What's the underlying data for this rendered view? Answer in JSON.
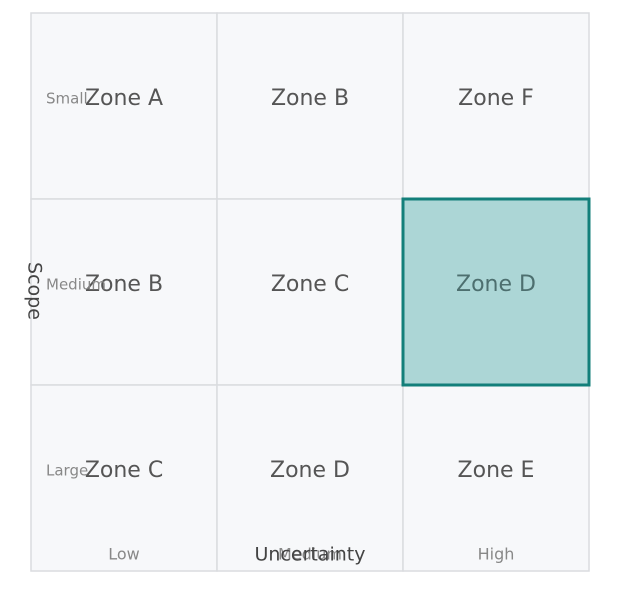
{
  "chart_data": {
    "type": "heatmap",
    "xlabel": "Uncertainty",
    "ylabel": "Scope",
    "x_categories": [
      "Low",
      "Medium",
      "High"
    ],
    "y_categories": [
      "Small",
      "Medium",
      "Large"
    ],
    "cells": [
      [
        "Zone A",
        "Zone B",
        "Zone F"
      ],
      [
        "Zone B",
        "Zone C",
        "Zone D"
      ],
      [
        "Zone C",
        "Zone D",
        "Zone E"
      ]
    ],
    "highlighted": {
      "row": 1,
      "col": 2,
      "label": "Zone D"
    },
    "colors": {
      "cell_fill": "#f7f8fa",
      "grid_line": "#dadcdf",
      "highlight_fill": "#acd6d6",
      "highlight_border": "#137f7a"
    }
  }
}
